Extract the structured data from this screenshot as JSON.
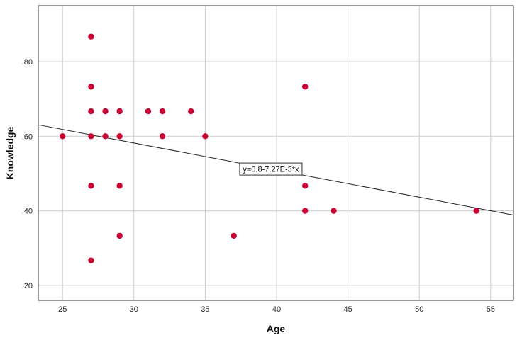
{
  "chart_data": {
    "type": "scatter",
    "title": "",
    "xlabel": "Age",
    "ylabel": "Knowledge",
    "xlim": [
      23.3,
      56.6
    ],
    "ylim": [
      0.16,
      0.95
    ],
    "x_ticks": [
      25,
      30,
      35,
      40,
      45,
      50,
      55
    ],
    "x_tick_labels": [
      "25",
      "30",
      "35",
      "40",
      "45",
      "50",
      "55"
    ],
    "y_ticks": [
      0.2,
      0.4,
      0.6,
      0.8
    ],
    "y_tick_labels": [
      ".20",
      ".40",
      ".60",
      ".80"
    ],
    "grid": true,
    "marker_color": "#cc0033",
    "points": [
      {
        "x": 25,
        "y": 0.6
      },
      {
        "x": 27,
        "y": 0.867
      },
      {
        "x": 27,
        "y": 0.733
      },
      {
        "x": 27,
        "y": 0.667
      },
      {
        "x": 27,
        "y": 0.6
      },
      {
        "x": 27,
        "y": 0.467
      },
      {
        "x": 27,
        "y": 0.267
      },
      {
        "x": 28,
        "y": 0.667
      },
      {
        "x": 28,
        "y": 0.6
      },
      {
        "x": 29,
        "y": 0.667
      },
      {
        "x": 29,
        "y": 0.6
      },
      {
        "x": 29,
        "y": 0.467
      },
      {
        "x": 29,
        "y": 0.333
      },
      {
        "x": 31,
        "y": 0.667
      },
      {
        "x": 32,
        "y": 0.667
      },
      {
        "x": 32,
        "y": 0.6
      },
      {
        "x": 34,
        "y": 0.667
      },
      {
        "x": 35,
        "y": 0.6
      },
      {
        "x": 37,
        "y": 0.333
      },
      {
        "x": 42,
        "y": 0.733
      },
      {
        "x": 42,
        "y": 0.467
      },
      {
        "x": 42,
        "y": 0.4
      },
      {
        "x": 44,
        "y": 0.4
      },
      {
        "x": 54,
        "y": 0.4
      }
    ],
    "fit_line": {
      "intercept": 0.8,
      "slope": -0.00727,
      "label": "y=0.8-7.27E-3*x"
    }
  }
}
